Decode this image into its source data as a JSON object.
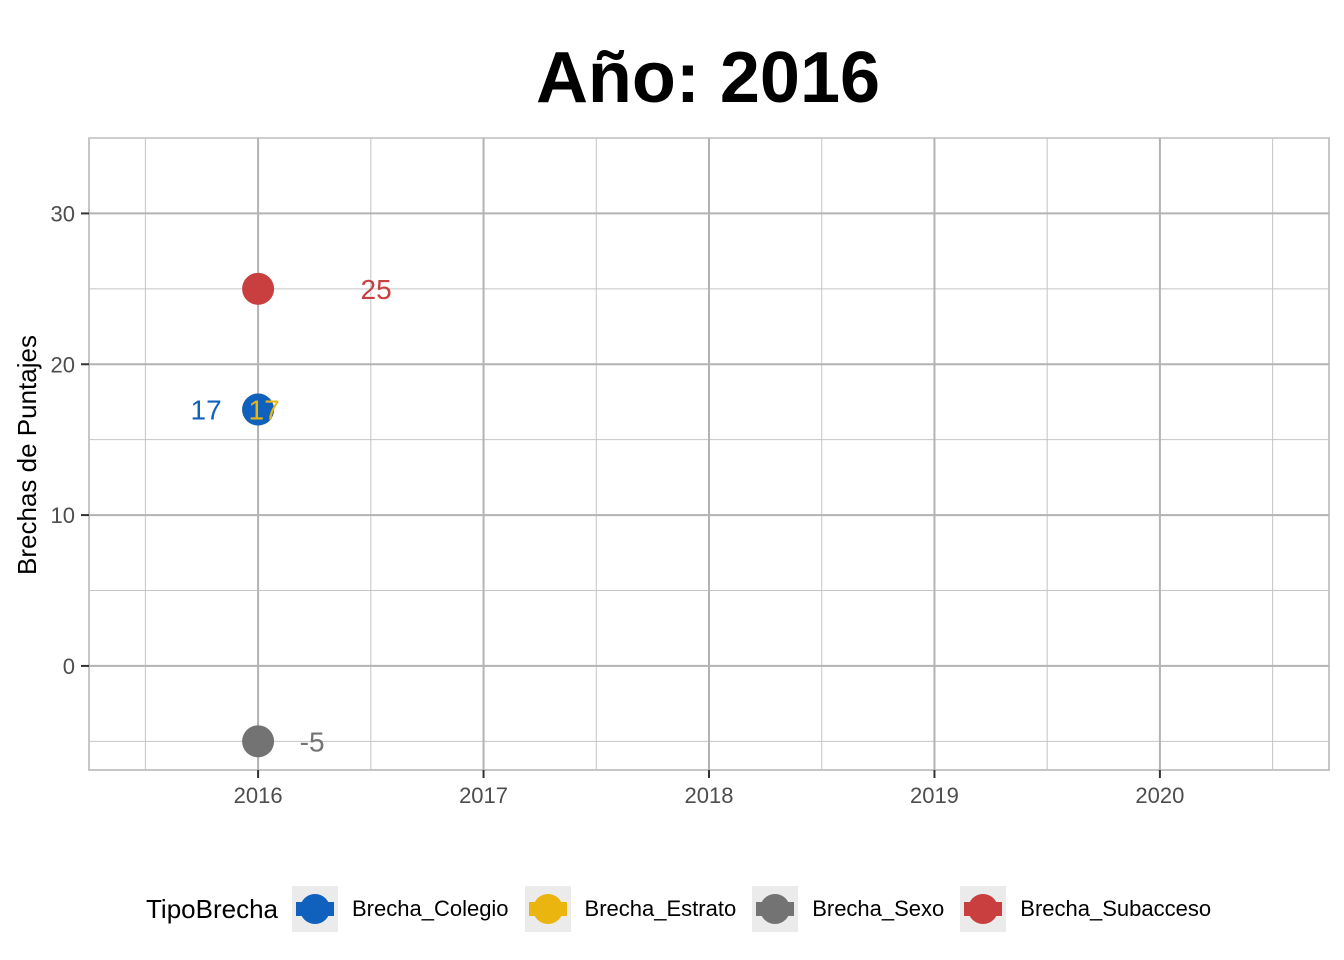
{
  "chart_data": {
    "type": "scatter",
    "title": "Año: 2016",
    "xlabel": "",
    "ylabel": "Brechas de Puntajes",
    "x_ticks": [
      "2016",
      "2017",
      "2018",
      "2019",
      "2020"
    ],
    "y_ticks": [
      "0",
      "10",
      "20",
      "30"
    ],
    "xlim": [
      2015.25,
      2020.75
    ],
    "ylim": [
      -6.9,
      35
    ],
    "grid": true,
    "legend_title": "TipoBrecha",
    "legend_position": "bottom",
    "series": [
      {
        "name": "Brecha_Colegio",
        "color": "#1060BE",
        "points": [
          {
            "x": 2016,
            "y": 17,
            "label": "17"
          }
        ]
      },
      {
        "name": "Brecha_Estrato",
        "color": "#EBB50F",
        "points": [
          {
            "x": 2016,
            "y": 17,
            "label": "17"
          }
        ]
      },
      {
        "name": "Brecha_Sexo",
        "color": "#737373",
        "points": [
          {
            "x": 2016,
            "y": -5,
            "label": "-5"
          }
        ]
      },
      {
        "name": "Brecha_Subacceso",
        "color": "#C93F3F",
        "points": [
          {
            "x": 2016,
            "y": 25,
            "label": "25"
          }
        ]
      }
    ]
  }
}
